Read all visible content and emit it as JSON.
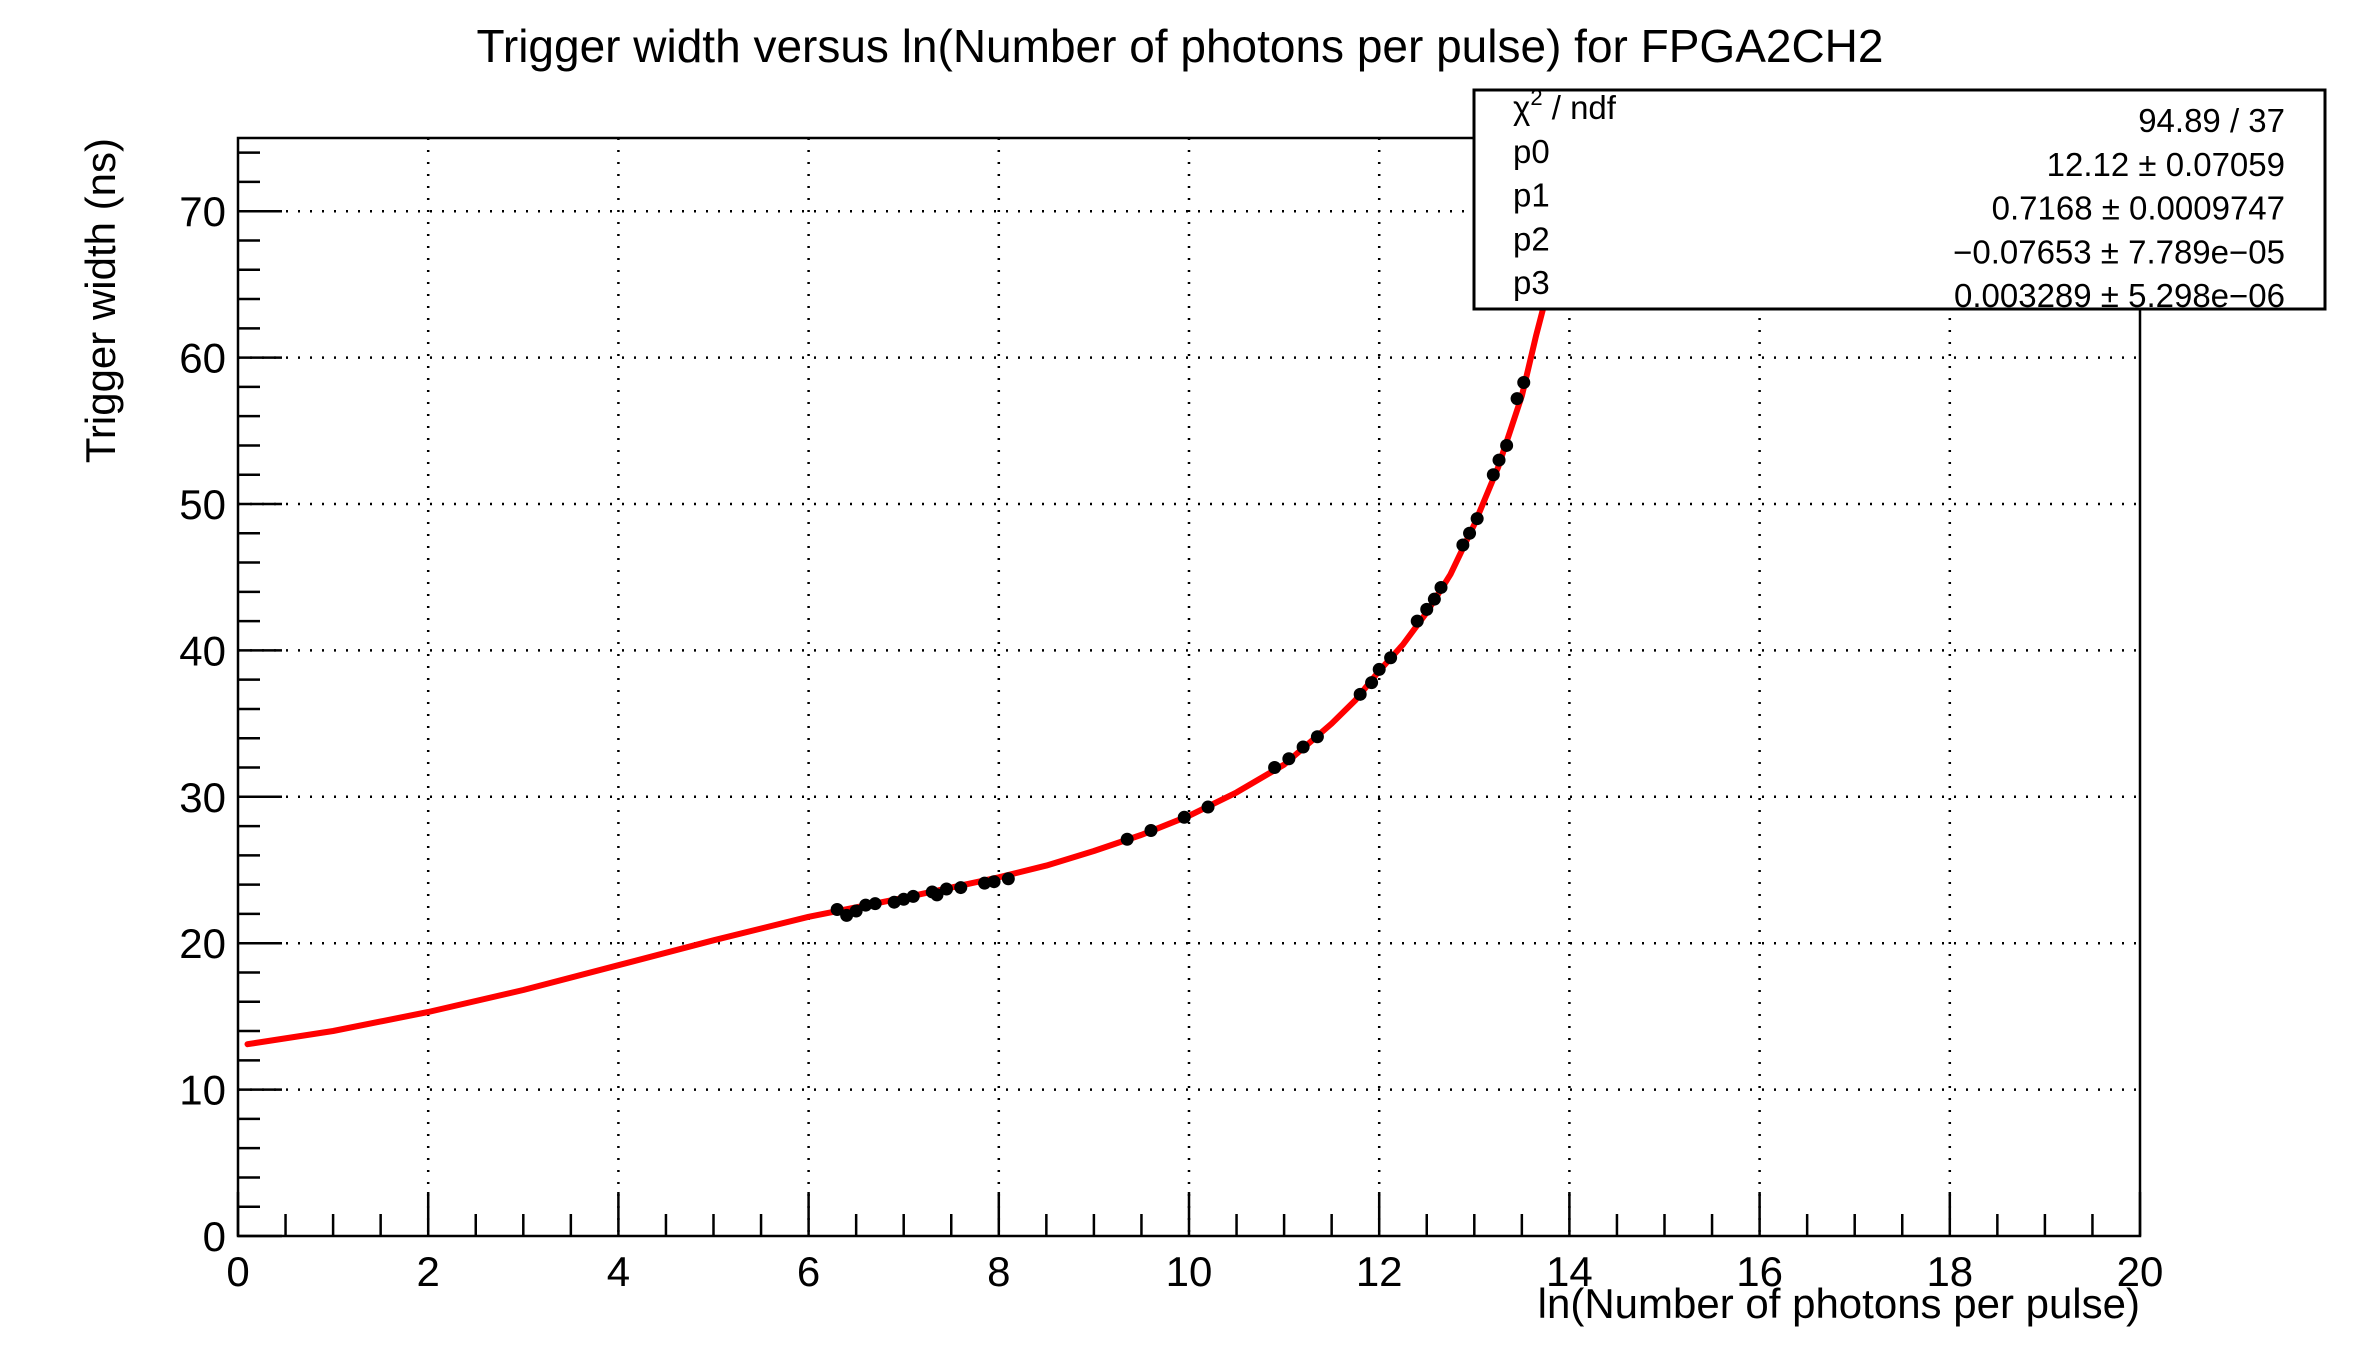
{
  "chart_data": {
    "type": "scatter",
    "title": "Trigger width versus ln(Number of photons per pulse) for FPGA2CH2",
    "xlabel": "ln(Number of photons per pulse)",
    "ylabel": "Trigger width (ns)",
    "xlim": [
      0,
      20
    ],
    "ylim": [
      0,
      75
    ],
    "x_ticks": [
      "0",
      "2",
      "4",
      "6",
      "8",
      "10",
      "12",
      "14",
      "16",
      "18",
      "20"
    ],
    "y_ticks": [
      "0",
      "10",
      "20",
      "30",
      "40",
      "50",
      "60",
      "70"
    ],
    "grid": true,
    "series": [
      {
        "kind": "points",
        "color": "#000000",
        "x": [
          6.3,
          6.4,
          6.5,
          6.6,
          6.7,
          6.9,
          7.0,
          7.1,
          7.3,
          7.35,
          7.45,
          7.6,
          7.85,
          7.95,
          8.1,
          9.35,
          9.6,
          9.95,
          10.2,
          10.9,
          11.05,
          11.2,
          11.35,
          11.8,
          11.92,
          12.0,
          12.12,
          12.4,
          12.5,
          12.58,
          12.65,
          12.88,
          12.95,
          13.03,
          13.2,
          13.26,
          13.34,
          13.45,
          13.52
        ],
        "y": [
          22.3,
          21.9,
          22.2,
          22.6,
          22.7,
          22.8,
          23.0,
          23.2,
          23.5,
          23.3,
          23.7,
          23.8,
          24.1,
          24.2,
          24.4,
          27.1,
          27.7,
          28.6,
          29.3,
          32.0,
          32.6,
          33.4,
          34.1,
          37.0,
          37.8,
          38.7,
          39.5,
          42.0,
          42.8,
          43.5,
          44.3,
          47.2,
          48.0,
          49.0,
          52.0,
          53.0,
          54.0,
          57.2,
          58.3
        ]
      },
      {
        "kind": "fit-curve",
        "color": "#ff0000",
        "x": [
          0.1,
          1,
          2,
          3,
          4,
          5,
          6,
          7,
          8,
          8.5,
          9,
          9.5,
          10,
          10.5,
          11,
          11.5,
          11.75,
          12,
          12.25,
          12.5,
          12.75,
          13,
          13.25,
          13.5,
          13.65,
          13.75
        ],
        "y": [
          13.1,
          14.0,
          15.3,
          16.8,
          18.5,
          20.2,
          21.8,
          23.1,
          24.5,
          25.3,
          26.3,
          27.4,
          28.7,
          30.3,
          32.2,
          35.0,
          36.6,
          38.6,
          40.4,
          42.6,
          45.2,
          48.6,
          52.5,
          57.4,
          61.5,
          64.0
        ]
      }
    ],
    "stats_box": {
      "position": "top-right",
      "rows": [
        {
          "label": "χ",
          "sup": "2",
          "suffix": " / ndf",
          "value": "94.89 / 37"
        },
        {
          "label": "p0",
          "sup": "",
          "suffix": "",
          "value": "12.12 ± 0.07059"
        },
        {
          "label": "p1",
          "sup": "",
          "suffix": "",
          "value": "0.7168 ± 0.0009747"
        },
        {
          "label": "p2",
          "sup": "",
          "suffix": "",
          "value": "−0.07653 ± 7.789e−05"
        },
        {
          "label": "p3",
          "sup": "",
          "suffix": "",
          "value": "0.003289 ± 5.298e−06"
        }
      ]
    }
  }
}
